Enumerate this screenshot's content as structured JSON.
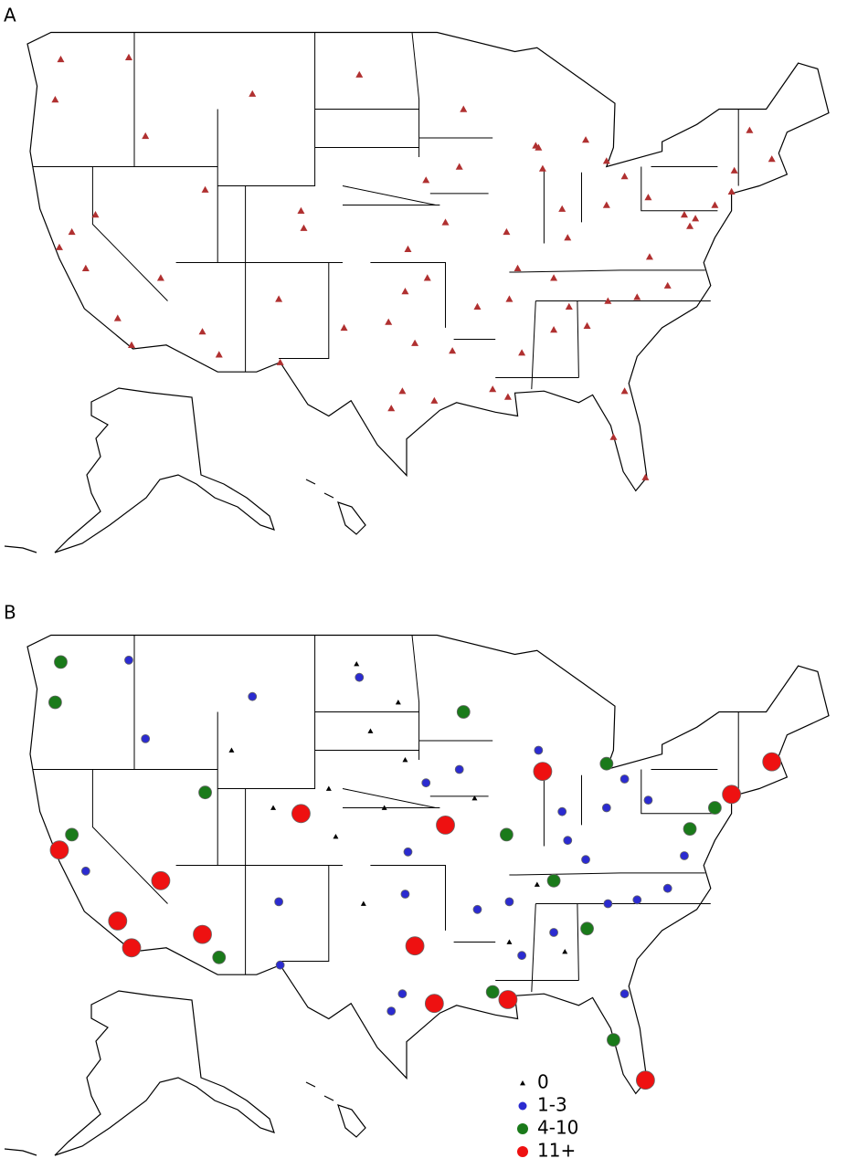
{
  "panel_a": {
    "label": "A",
    "color": "#b03030",
    "lon": [
      -122.3,
      -122.7,
      -122.4,
      -118.2,
      -117.2,
      -121.5,
      -112.1,
      -110.9,
      -115.1,
      -111.9,
      -105,
      -106.6,
      -106.5,
      -96.8,
      -95.4,
      -98.5,
      -97.7,
      -97.5,
      -94.6,
      -96,
      -93.3,
      -87.6,
      -83,
      -90.2,
      -90,
      -90.1,
      -84.4,
      -86.8,
      -80.2,
      -82.5,
      -81.7,
      -80.8,
      -78.6,
      -77,
      -75.2,
      -74,
      -71.1,
      -80,
      -81.7,
      -86.2,
      -83,
      -116.2,
      -108.5,
      -117.4,
      -100.8,
      -87.9,
      -85.8,
      -86.8,
      -92.3,
      -120.5,
      -119.8,
      -104.8,
      -101.9,
      -95.9,
      -89.4,
      -88.1,
      -84.5,
      -79.9,
      -77.4,
      -73.8,
      -72.7,
      -76.6,
      -82.9,
      -85.7,
      -93.6,
      -97.3,
      -98.7,
      -94.1,
      -91.2,
      -89.1
    ],
    "lat": [
      47.6,
      45.5,
      37.8,
      34.1,
      32.7,
      38.6,
      33.4,
      32.2,
      36.2,
      40.8,
      39.7,
      35.1,
      31.8,
      32.8,
      29.8,
      29.4,
      30.3,
      35.5,
      39.1,
      41.3,
      45,
      41.9,
      42.3,
      38.6,
      35.1,
      30,
      33.7,
      36.2,
      25.8,
      27.9,
      30.3,
      35.2,
      35.8,
      38.9,
      40,
      40.7,
      42.4,
      40.4,
      41.5,
      39.8,
      40,
      43.6,
      45.8,
      47.7,
      46.8,
      43,
      38.3,
      33.5,
      34.7,
      36.7,
      39.5,
      38.8,
      33.6,
      36.2,
      36.7,
      43.1,
      43.4,
      37.3,
      39.5,
      41.8,
      43.9,
      39.3,
      35,
      34.7,
      42,
      37.7,
      33.9,
      32.4,
      30.4,
      32.3
    ]
  },
  "panel_b": {
    "label": "B",
    "groups": [
      {
        "name": "0",
        "color": "#000000",
        "lon": [
          -101,
          -100,
          -99,
          -103,
          -100.5,
          -90,
          -88,
          -110,
          -107,
          -98,
          -92.5,
          -86,
          -102.5,
          -97.5
        ],
        "lat": [
          47.5,
          44,
          40,
          41,
          35,
          33,
          36,
          43,
          40,
          45.5,
          40.5,
          32.5,
          38.5,
          42.5
        ]
      },
      {
        "name": "1-3",
        "color": "#2b2bd0",
        "lon": [
          -116.2,
          -108.5,
          -117.4,
          -100.8,
          -87.9,
          -85.8,
          -86.8,
          -92.3,
          -106.6,
          -106.5,
          -98.5,
          -97.7,
          -97.5,
          -96,
          -90,
          -86.2,
          -83,
          -81.7,
          -80,
          -80.8,
          -78.6,
          -81.7,
          -77.4,
          -84.5,
          -89.1,
          -82.9,
          -93.6,
          -97.3,
          -120.5
        ],
        "lat": [
          43.6,
          45.8,
          47.7,
          46.8,
          43,
          38.3,
          33.5,
          34.7,
          35.1,
          31.8,
          29.4,
          30.3,
          35.5,
          41.3,
          35.1,
          39.8,
          40,
          41.5,
          40.4,
          35.2,
          35.8,
          30.3,
          37.5,
          37.3,
          32.3,
          35,
          42,
          37.7,
          36.7
        ]
      },
      {
        "name": "4-10",
        "color": "#1a7a1a",
        "lon": [
          -122.3,
          -122.7,
          -121.5,
          -110.9,
          -111.9,
          -93.3,
          -90.2,
          -84.4,
          -82.5,
          -77,
          -75.2,
          -83,
          -86.8,
          -91.2
        ],
        "lat": [
          47.6,
          45.5,
          38.6,
          32.2,
          40.8,
          45,
          38.6,
          33.7,
          27.9,
          38.9,
          40,
          42.3,
          36.2,
          30.4
        ]
      },
      {
        "name": "11+",
        "color": "#ee1111",
        "lon": [
          -118.2,
          -117.2,
          -122.4,
          -112.1,
          -105,
          -95.4,
          -96.8,
          -74,
          -71.1,
          -80.2,
          -90.1,
          -94.6,
          -115.1,
          -87.6
        ],
        "lat": [
          34.1,
          32.7,
          37.8,
          33.4,
          39.7,
          29.8,
          32.8,
          40.7,
          42.4,
          25.8,
          30,
          39.1,
          36.2,
          41.9
        ]
      }
    ]
  }
}
